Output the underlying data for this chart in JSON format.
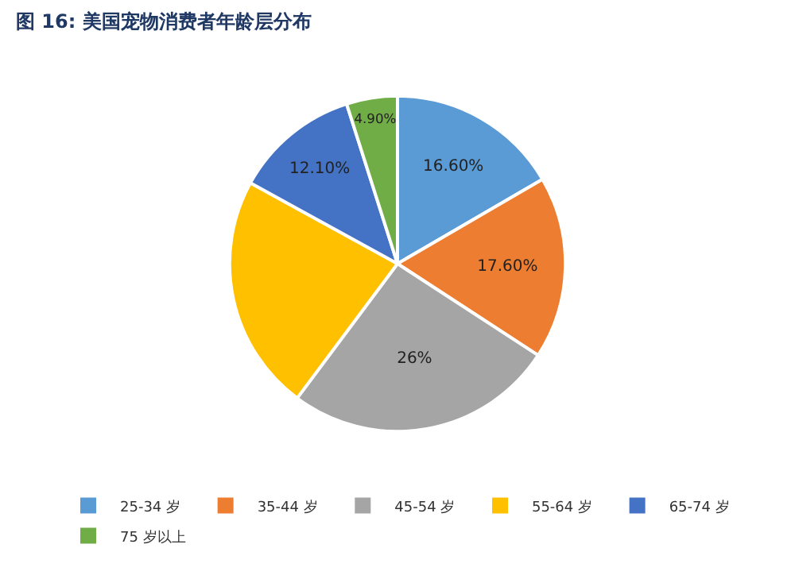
{
  "chart_data": {
    "type": "pie",
    "title": "图 16: 美国宠物消费者年龄层分布",
    "categories": [
      "25-34 岁",
      "35-44 岁",
      "45-54 岁",
      "55-64 岁",
      "65-74 岁",
      "75 岁以上"
    ],
    "values": [
      16.6,
      17.6,
      26,
      22.8,
      12.1,
      4.9
    ],
    "value_labels": [
      "16.60%",
      "17.60%",
      "26%",
      null,
      "12.10%",
      "4.90%"
    ],
    "colors": [
      "#5b9bd5",
      "#ed7d31",
      "#a5a5a5",
      "#ffc000",
      "#4472c4",
      "#70ad47"
    ],
    "legend": "bottom"
  }
}
